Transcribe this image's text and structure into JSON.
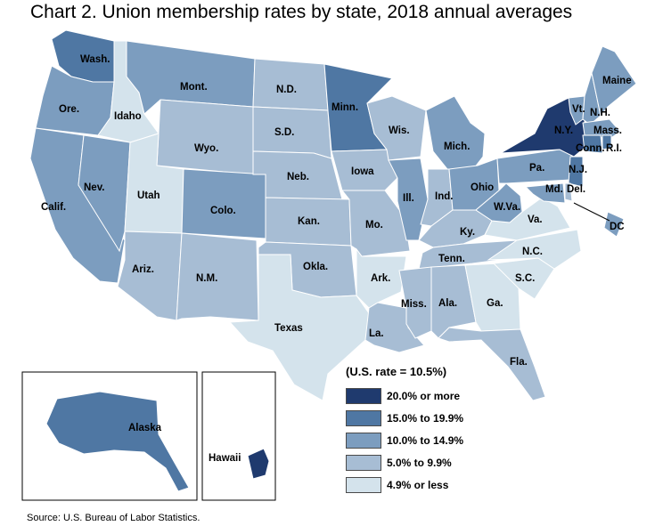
{
  "chart_data": {
    "type": "choropleth",
    "title": "Chart 2. Union membership rates by state, 2018 annual averages",
    "us_rate_note": "(U.S. rate = 10.5%)",
    "source": "Source: U.S. Bureau of Labor Statistics.",
    "legend_placement": "bottom-right",
    "legend": [
      {
        "label": "20.0% or more",
        "color": "#1f3a6e"
      },
      {
        "label": "15.0% to 19.9%",
        "color": "#4f77a3"
      },
      {
        "label": "10.0% to 14.9%",
        "color": "#7c9dbf"
      },
      {
        "label": "5.0% to 9.9%",
        "color": "#a7bdd4"
      },
      {
        "label": "4.9% or less",
        "color": "#d4e3ec"
      }
    ],
    "states": [
      {
        "label": "Wash.",
        "class": 1
      },
      {
        "label": "Ore.",
        "class": 2
      },
      {
        "label": "Calif.",
        "class": 2
      },
      {
        "label": "Nev.",
        "class": 2
      },
      {
        "label": "Idaho",
        "class": 4
      },
      {
        "label": "Mont.",
        "class": 2
      },
      {
        "label": "Wyo.",
        "class": 3
      },
      {
        "label": "Utah",
        "class": 4
      },
      {
        "label": "Ariz.",
        "class": 3
      },
      {
        "label": "Colo.",
        "class": 2
      },
      {
        "label": "N.M.",
        "class": 3
      },
      {
        "label": "N.D.",
        "class": 3
      },
      {
        "label": "S.D.",
        "class": 3
      },
      {
        "label": "Neb.",
        "class": 3
      },
      {
        "label": "Kan.",
        "class": 3
      },
      {
        "label": "Okla.",
        "class": 3
      },
      {
        "label": "Texas",
        "class": 4
      },
      {
        "label": "Minn.",
        "class": 1
      },
      {
        "label": "Iowa",
        "class": 3
      },
      {
        "label": "Mo.",
        "class": 3
      },
      {
        "label": "Ark.",
        "class": 4
      },
      {
        "label": "La.",
        "class": 3
      },
      {
        "label": "Wis.",
        "class": 3
      },
      {
        "label": "Ill.",
        "class": 2
      },
      {
        "label": "Mich.",
        "class": 2
      },
      {
        "label": "Ind.",
        "class": 3
      },
      {
        "label": "Ohio",
        "class": 2
      },
      {
        "label": "Ky.",
        "class": 3
      },
      {
        "label": "Tenn.",
        "class": 3
      },
      {
        "label": "Miss.",
        "class": 3
      },
      {
        "label": "Ala.",
        "class": 3
      },
      {
        "label": "Ga.",
        "class": 4
      },
      {
        "label": "Fla.",
        "class": 3
      },
      {
        "label": "S.C.",
        "class": 4
      },
      {
        "label": "N.C.",
        "class": 4
      },
      {
        "label": "Va.",
        "class": 4
      },
      {
        "label": "W.Va.",
        "class": 2
      },
      {
        "label": "Pa.",
        "class": 2
      },
      {
        "label": "N.Y.",
        "class": 0
      },
      {
        "label": "Vt.",
        "class": 2
      },
      {
        "label": "N.H.",
        "class": 2
      },
      {
        "label": "Maine",
        "class": 2
      },
      {
        "label": "Mass.",
        "class": 2
      },
      {
        "label": "Conn.",
        "class": 1
      },
      {
        "label": "R.I.",
        "class": 1
      },
      {
        "label": "N.J.",
        "class": 1
      },
      {
        "label": "Del.",
        "class": 3
      },
      {
        "label": "Md.",
        "class": 2
      },
      {
        "label": "DC",
        "class": 2
      },
      {
        "label": "Alaska",
        "class": 1
      },
      {
        "label": "Hawaii",
        "class": 0
      }
    ]
  }
}
